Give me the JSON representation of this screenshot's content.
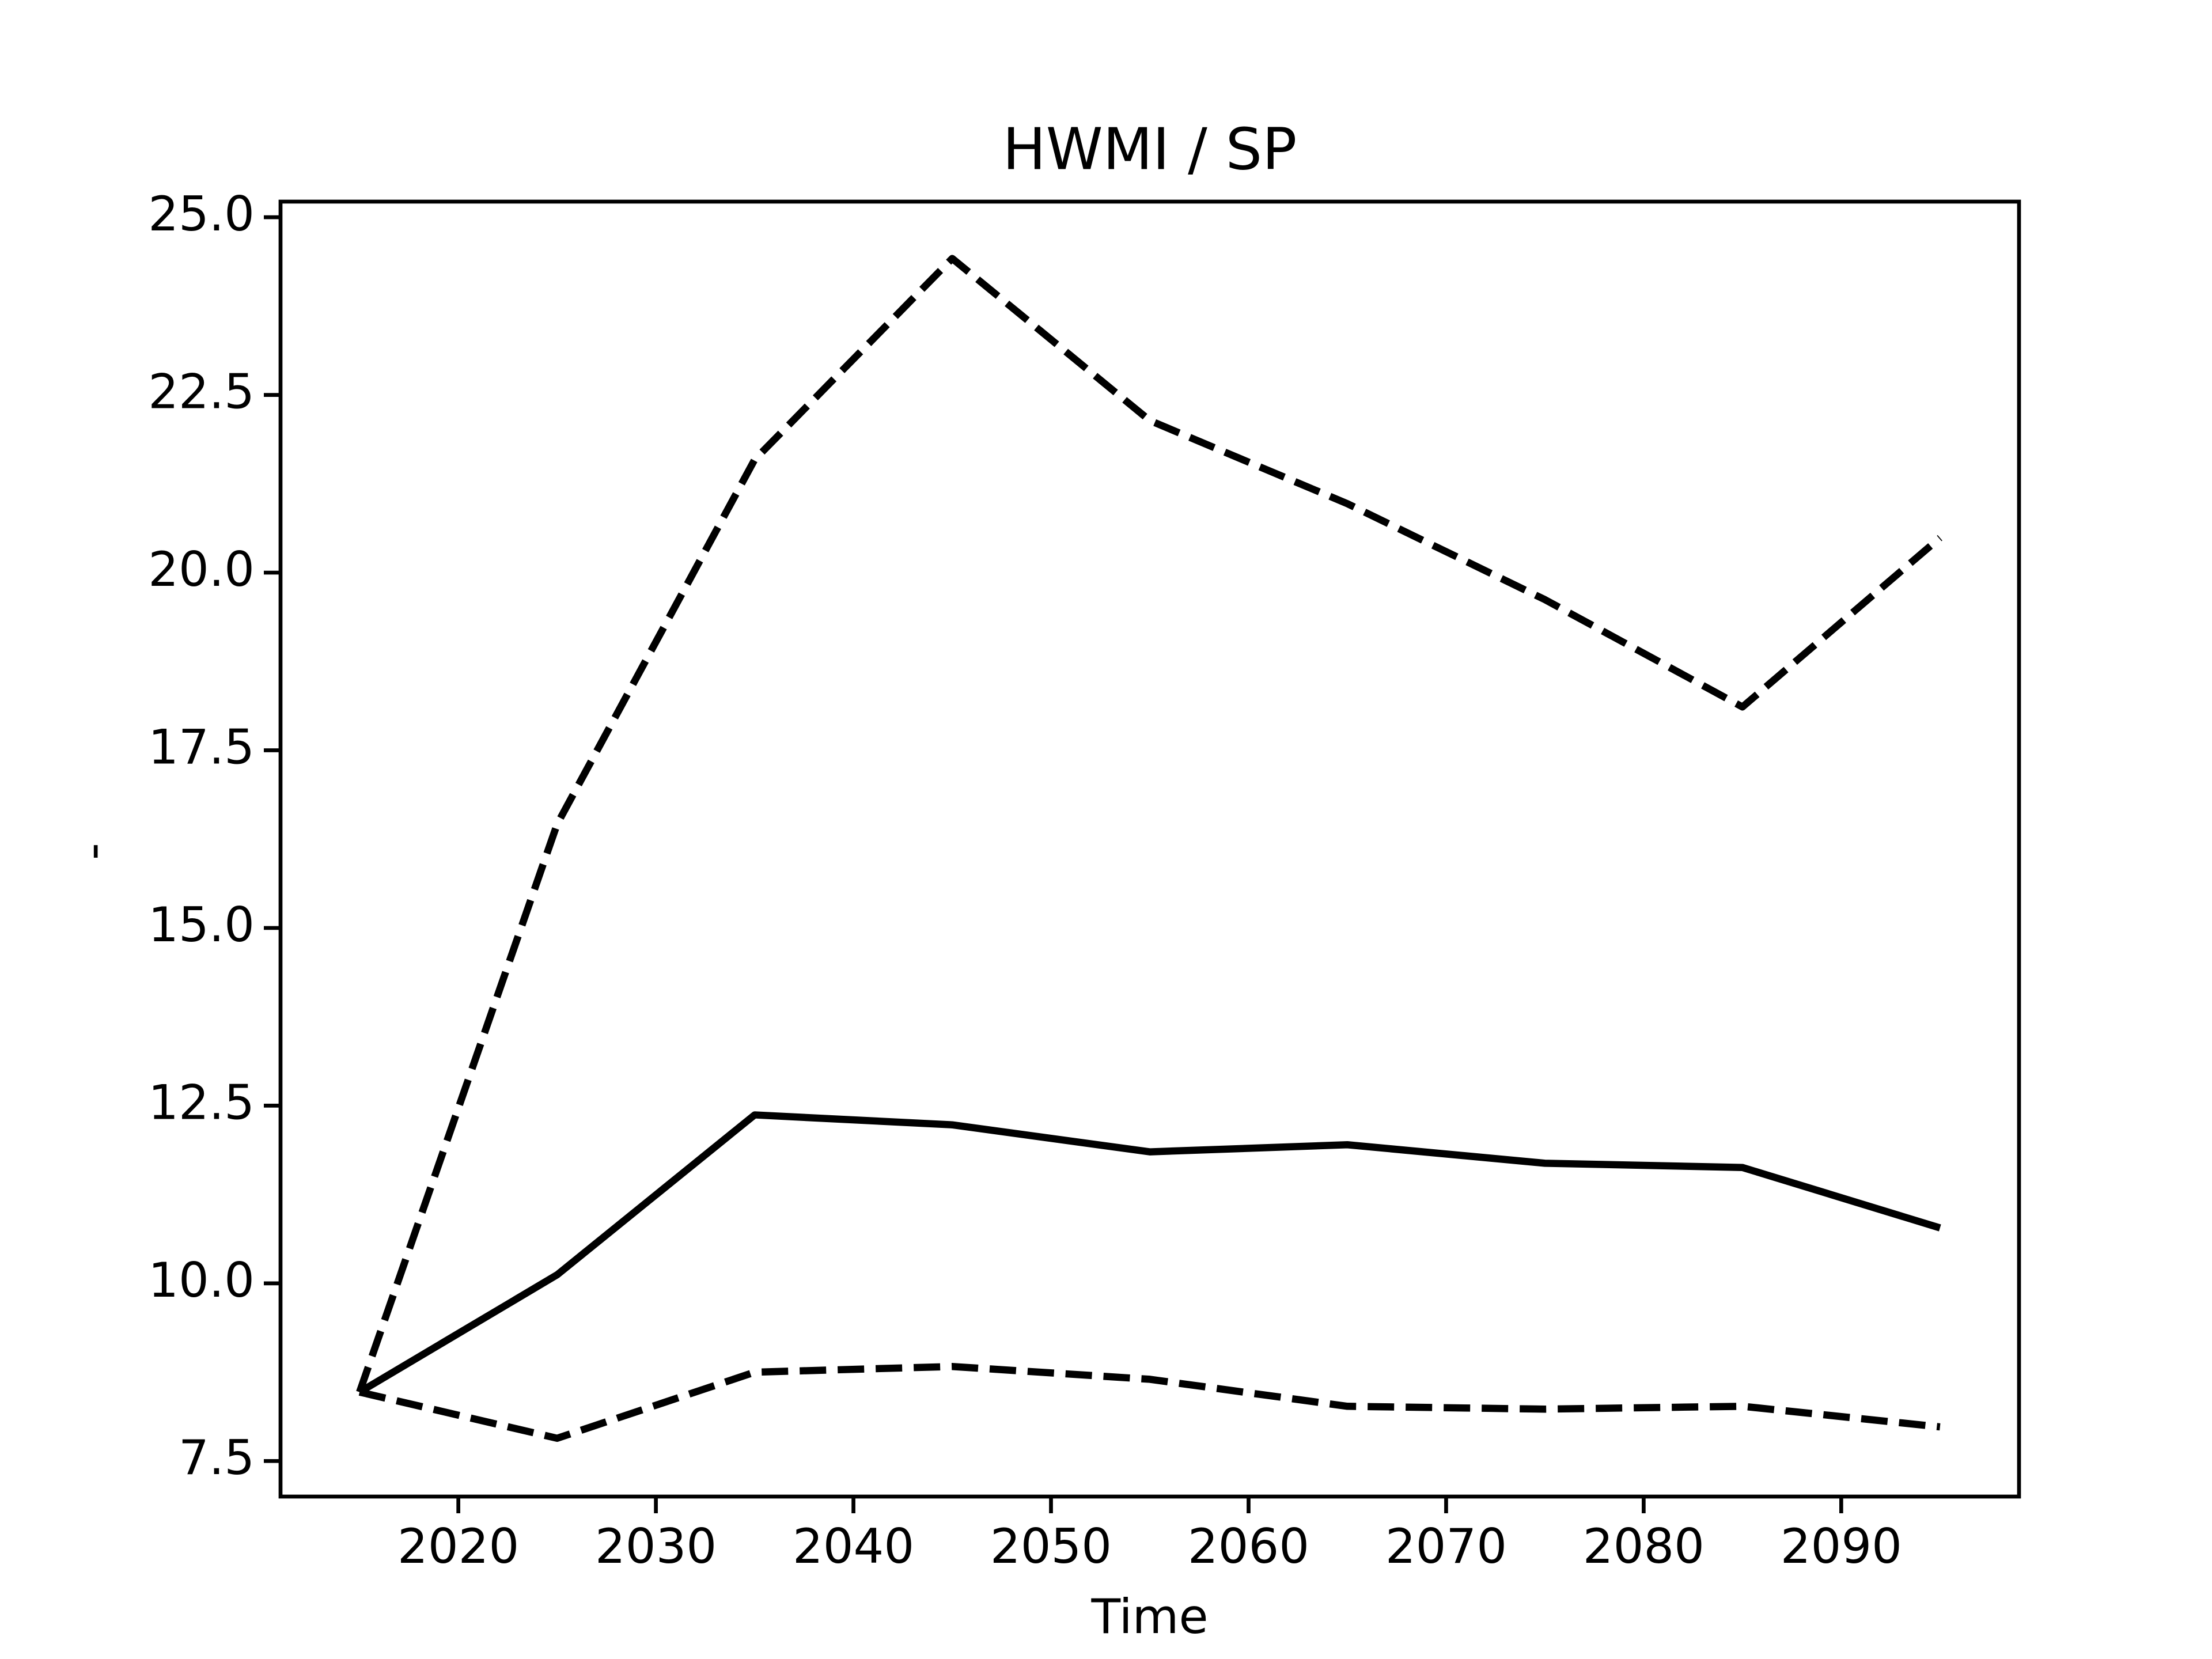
{
  "chart_data": {
    "type": "line",
    "title": "HWMI / SP",
    "xlabel": "Time",
    "ylabel": "-",
    "x": [
      2015,
      2025,
      2035,
      2045,
      2055,
      2065,
      2075,
      2085,
      2095
    ],
    "series": [
      {
        "color": "#000000",
        "dash": false,
        "values": [
          8.47,
          10.12,
          12.37,
          12.23,
          11.85,
          11.95,
          11.69,
          11.63,
          10.78
        ]
      },
      {
        "color": "#000000",
        "dash": true,
        "values": [
          8.47,
          16.46,
          21.59,
          24.42,
          22.14,
          20.97,
          19.62,
          18.11,
          20.49
        ]
      },
      {
        "color": "#000000",
        "dash": true,
        "values": [
          8.47,
          7.82,
          8.75,
          8.83,
          8.65,
          8.27,
          8.23,
          8.27,
          7.98
        ]
      }
    ],
    "xlim": [
      2011,
      2099
    ],
    "xticks": [
      2020,
      2030,
      2040,
      2050,
      2060,
      2070,
      2080,
      2090
    ],
    "ylim": [
      7.0,
      25.22
    ],
    "yticks": [
      {
        "value": 7.5,
        "label": "7.5"
      },
      {
        "value": 10,
        "label": "10.0"
      },
      {
        "value": 12.5,
        "label": "12.5"
      },
      {
        "value": 15,
        "label": "15.0"
      },
      {
        "value": 17.5,
        "label": "17.5"
      },
      {
        "value": 20,
        "label": "20.0"
      },
      {
        "value": 22.5,
        "label": "22.5"
      },
      {
        "value": 25,
        "label": "25.0"
      }
    ],
    "grid": false
  }
}
